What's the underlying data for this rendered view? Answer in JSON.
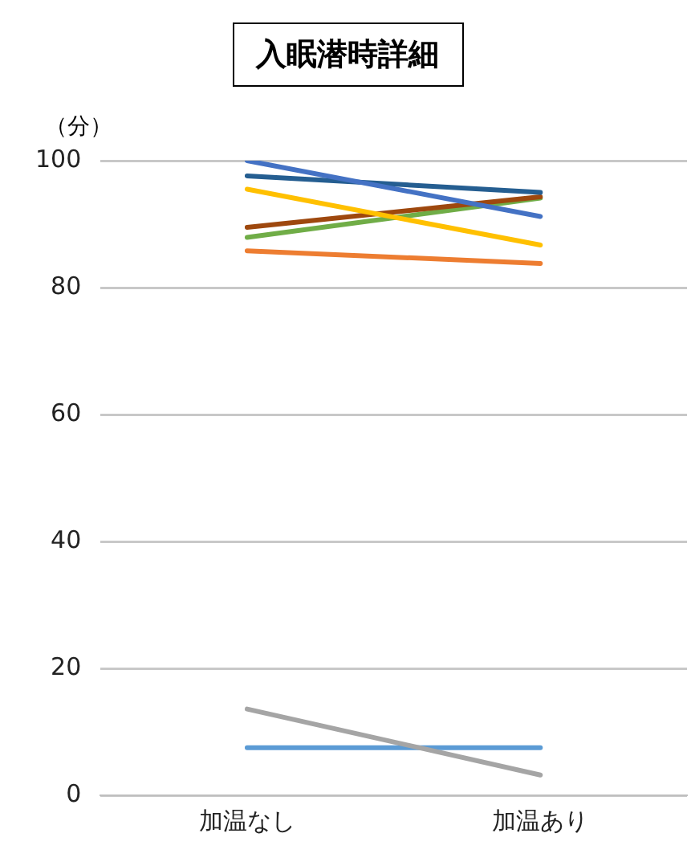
{
  "chart_data": {
    "type": "line",
    "title": "入眠潜時詳細",
    "ylabel": "（分）",
    "categories": [
      "加温なし",
      "加温あり"
    ],
    "series": [
      {
        "color": "#4472c4",
        "values": [
          100,
          91.2
        ]
      },
      {
        "color": "#255e91",
        "values": [
          97.6,
          95.0
        ]
      },
      {
        "color": "#ffc000",
        "values": [
          95.5,
          86.7
        ]
      },
      {
        "color": "#9e480e",
        "values": [
          89.5,
          94.3
        ]
      },
      {
        "color": "#70ad47",
        "values": [
          87.9,
          94.1
        ]
      },
      {
        "color": "#ed7d31",
        "values": [
          85.8,
          83.8
        ]
      },
      {
        "color": "#a5a5a5",
        "values": [
          13.6,
          3.2
        ]
      },
      {
        "color": "#5b9bd5",
        "values": [
          7.5,
          7.5
        ]
      }
    ],
    "ylim": [
      0,
      100
    ],
    "yticks": [
      0,
      20,
      40,
      60,
      80,
      100
    ],
    "grid": "y",
    "legend": false,
    "marker": "none",
    "line_style": "solid"
  }
}
